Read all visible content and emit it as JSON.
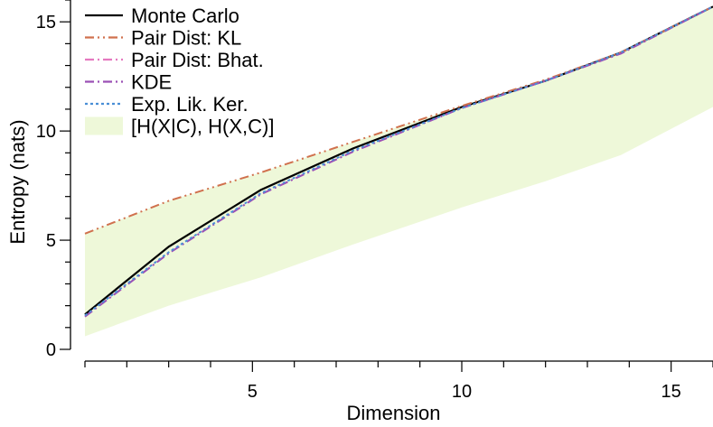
{
  "chart_data": {
    "type": "line",
    "title": "",
    "xlabel": "Dimension",
    "ylabel": "Entropy (nats)",
    "xlim": [
      1,
      16
    ],
    "ylim": [
      0,
      16
    ],
    "xticks": [
      5,
      10,
      15
    ],
    "yticks": [
      0,
      5,
      10,
      15
    ],
    "x": [
      1,
      3,
      5.2,
      7.4,
      10,
      12,
      13.8,
      16
    ],
    "series": [
      {
        "name": "Monte Carlo",
        "color": "#000000",
        "dash": "solid",
        "values": [
          1.6,
          4.7,
          7.3,
          9.2,
          11.1,
          12.3,
          13.6,
          15.7
        ]
      },
      {
        "name": "Pair Dist: KL",
        "color": "#d0714e",
        "dash": "dashdotdot",
        "values": [
          5.3,
          6.8,
          8.1,
          9.5,
          11.15,
          12.35,
          13.6,
          15.7
        ]
      },
      {
        "name": "Pair Dist: Bhat.",
        "color": "#e579c0",
        "dash": "dashdot",
        "values": [
          1.5,
          4.4,
          7.1,
          9.05,
          11.05,
          12.3,
          13.55,
          15.7
        ]
      },
      {
        "name": "KDE",
        "color": "#9b50b5",
        "dash": "dashdot",
        "values": [
          1.5,
          4.4,
          7.1,
          9.05,
          11.05,
          12.3,
          13.55,
          15.7
        ]
      },
      {
        "name": "Exp. Lik. Ker.",
        "color": "#4a8fd6",
        "dash": "dotted",
        "values": [
          1.55,
          4.45,
          7.15,
          9.1,
          11.05,
          12.3,
          13.6,
          15.7
        ]
      }
    ],
    "band": {
      "name": "[H(X|C), H(X,C)]",
      "color": "#eef8d9",
      "lower": [
        0.6,
        2.0,
        3.3,
        4.8,
        6.5,
        7.7,
        8.9,
        11.1
      ],
      "upper": [
        5.3,
        6.8,
        8.1,
        9.5,
        11.15,
        12.35,
        13.6,
        15.7
      ]
    },
    "legend": "top-left",
    "grid": false
  }
}
